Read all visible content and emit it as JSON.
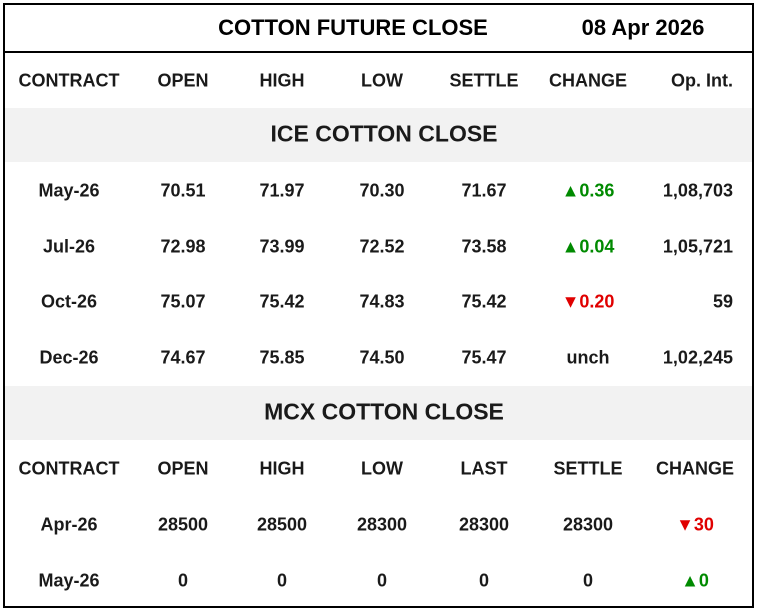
{
  "header": {
    "title": "COTTON FUTURE CLOSE",
    "date": "08 Apr 2026"
  },
  "ice_table": {
    "columns": [
      "CONTRACT",
      "OPEN",
      "HIGH",
      "LOW",
      "SETTLE",
      "CHANGE",
      "Op. Int."
    ],
    "title": "ICE COTTON CLOSE",
    "rows": [
      [
        "May-26",
        "70.51",
        "71.97",
        "70.30",
        "71.67",
        "▲0.36",
        "1,08,703"
      ],
      [
        "Jul-26",
        "72.98",
        "73.99",
        "72.52",
        "73.58",
        "▲0.04",
        "1,05,721"
      ],
      [
        "Oct-26",
        "75.07",
        "75.42",
        "74.83",
        "75.42",
        "▼0.20",
        "59"
      ],
      [
        "Dec-26",
        "74.67",
        "75.85",
        "74.50",
        "75.47",
        "unch",
        "1,02,245"
      ]
    ]
  },
  "mcx_table": {
    "title": "MCX COTTON CLOSE",
    "columns": [
      "CONTRACT",
      "OPEN",
      "HIGH",
      "LOW",
      "LAST",
      "SETTLE",
      "CHANGE"
    ],
    "rows": [
      [
        "Apr-26",
        "28500",
        "28500",
        "28300",
        "28300",
        "28300",
        "▼30"
      ],
      [
        "May-26",
        "0",
        "0",
        "0",
        "0",
        "0",
        "▲0"
      ]
    ]
  }
}
